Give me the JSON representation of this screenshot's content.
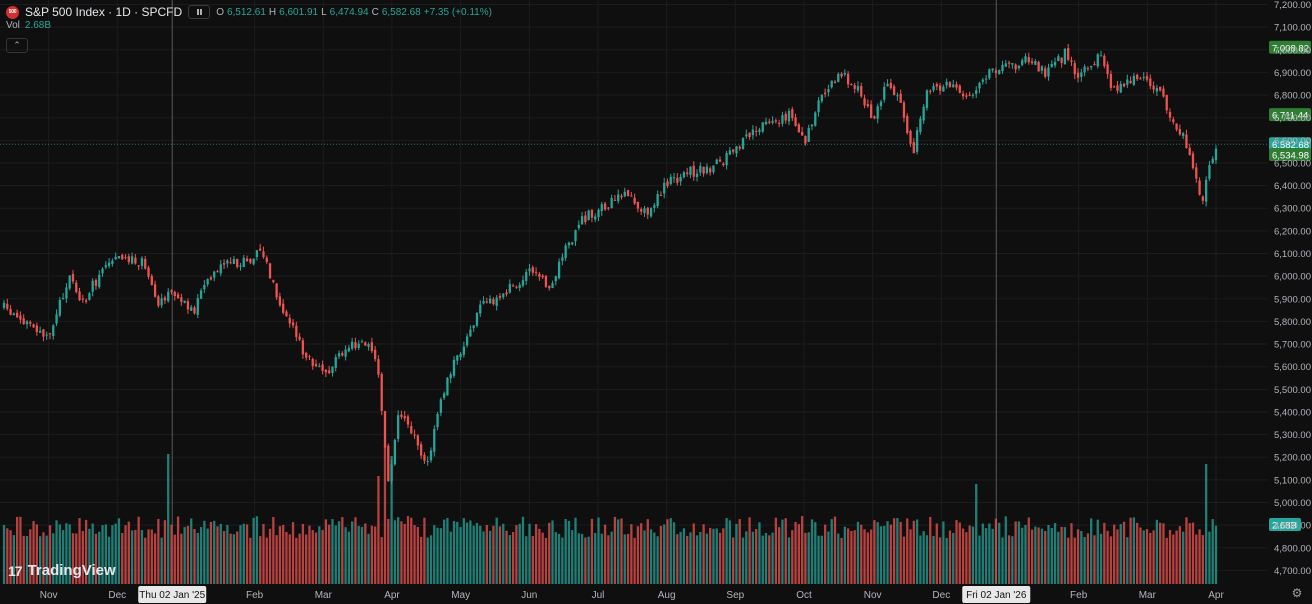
{
  "header": {
    "symbol_badge": "500",
    "title": "S&P 500 Index · 1D · SPCFD",
    "ohlc": {
      "o_label": "O",
      "o_value": "6,512.61",
      "h_label": "H",
      "h_value": "6,601.91",
      "l_label": "L",
      "l_value": "6,474.94",
      "c_label": "C",
      "c_value": "6,582.68",
      "change": "+7.35 (+0.11%)"
    },
    "vol_label": "Vol",
    "vol_value": "2.68B",
    "collapse_icon": "chevron-up-icon"
  },
  "branding": {
    "logo_mark": "17",
    "logo_text": "TradingView"
  },
  "colors": {
    "up": "#26a69a",
    "down": "#ef5350",
    "background": "#0f0f0f",
    "grid": "#1c1c1c",
    "price_tag": "#2e7d32"
  },
  "chart_data": {
    "type": "candlestick",
    "symbol": "SPCFD",
    "interval": "1D",
    "ylim": [
      4640,
      7220
    ],
    "y_ticks": [
      {
        "value": 7200,
        "label": "7,200.00"
      },
      {
        "value": 7100,
        "label": "7,100.00"
      },
      {
        "value": 7000,
        "label": "7,000.00"
      },
      {
        "value": 6900,
        "label": "6,900.00"
      },
      {
        "value": 6800,
        "label": "6,800.00"
      },
      {
        "value": 6700,
        "label": "6,700.00"
      },
      {
        "value": 6600,
        "label": "6,600.00"
      },
      {
        "value": 6500,
        "label": "6,500.00"
      },
      {
        "value": 6400,
        "label": "6,400.00"
      },
      {
        "value": 6300,
        "label": "6,300.00"
      },
      {
        "value": 6200,
        "label": "6,200.00"
      },
      {
        "value": 6100,
        "label": "6,100.00"
      },
      {
        "value": 6000,
        "label": "6,000.00"
      },
      {
        "value": 5900,
        "label": "5,900.00"
      },
      {
        "value": 5800,
        "label": "5,800.00"
      },
      {
        "value": 5700,
        "label": "5,700.00"
      },
      {
        "value": 5600,
        "label": "5,600.00"
      },
      {
        "value": 5500,
        "label": "5,500.00"
      },
      {
        "value": 5400,
        "label": "5,400.00"
      },
      {
        "value": 5300,
        "label": "5,300.00"
      },
      {
        "value": 5200,
        "label": "5,200.00"
      },
      {
        "value": 5100,
        "label": "5,100.00"
      },
      {
        "value": 5000,
        "label": "5,000.00"
      },
      {
        "value": 4900,
        "label": "4,900.00"
      },
      {
        "value": 4800,
        "label": "4,800.00"
      },
      {
        "value": 4700,
        "label": "4,700.00"
      }
    ],
    "x_ticks": [
      "Nov",
      "Dec",
      "Feb",
      "Mar",
      "Apr",
      "May",
      "Jun",
      "Jul",
      "Aug",
      "Sep",
      "Oct",
      "Nov",
      "Dec",
      "Feb",
      "Mar",
      "Apr"
    ],
    "x_tick_positions": [
      0.2,
      1.2,
      3.2,
      4.2,
      5.2,
      6.2,
      7.2,
      8.2,
      9.2,
      10.2,
      11.2,
      12.2,
      13.2,
      15.2,
      16.2,
      17.2
    ],
    "crosshair_labels": [
      {
        "label": "Thu 02 Jan '25",
        "month_index": 2.0
      },
      {
        "label": "Fri 02 Jan '26",
        "month_index": 14.0
      }
    ],
    "month_index_range": [
      -0.45,
      17.2
    ],
    "price_tags": [
      {
        "value": 7008.82,
        "label": "7,008.82"
      },
      {
        "value": 6711.44,
        "label": "6,711.44"
      },
      {
        "value": 6582.68,
        "label": "6,582.68"
      },
      {
        "value": 6534.98,
        "label": "6,534.98"
      }
    ],
    "current_price": 6582.68,
    "volume_tag": "2.68B",
    "price_anchors": [
      [
        -0.45,
        5860
      ],
      [
        0.2,
        5720
      ],
      [
        0.5,
        6000
      ],
      [
        0.7,
        5880
      ],
      [
        1.0,
        6040
      ],
      [
        1.3,
        6080
      ],
      [
        1.6,
        6060
      ],
      [
        1.8,
        5890
      ],
      [
        2.0,
        5940
      ],
      [
        2.3,
        5830
      ],
      [
        2.5,
        5990
      ],
      [
        2.8,
        6080
      ],
      [
        3.0,
        6050
      ],
      [
        3.3,
        6120
      ],
      [
        3.6,
        5860
      ],
      [
        3.9,
        5680
      ],
      [
        4.2,
        5560
      ],
      [
        4.5,
        5680
      ],
      [
        4.8,
        5720
      ],
      [
        5.0,
        5580
      ],
      [
        5.15,
        5080
      ],
      [
        5.3,
        5400
      ],
      [
        5.5,
        5300
      ],
      [
        5.7,
        5150
      ],
      [
        5.9,
        5450
      ],
      [
        6.2,
        5680
      ],
      [
        6.5,
        5860
      ],
      [
        6.8,
        5920
      ],
      [
        7.2,
        6010
      ],
      [
        7.5,
        5950
      ],
      [
        7.7,
        6110
      ],
      [
        8.0,
        6260
      ],
      [
        8.3,
        6300
      ],
      [
        8.6,
        6370
      ],
      [
        8.9,
        6280
      ],
      [
        9.2,
        6410
      ],
      [
        9.5,
        6460
      ],
      [
        9.8,
        6470
      ],
      [
        10.2,
        6550
      ],
      [
        10.5,
        6650
      ],
      [
        10.8,
        6690
      ],
      [
        11.0,
        6720
      ],
      [
        11.2,
        6590
      ],
      [
        11.4,
        6760
      ],
      [
        11.7,
        6890
      ],
      [
        12.0,
        6840
      ],
      [
        12.2,
        6690
      ],
      [
        12.4,
        6860
      ],
      [
        12.6,
        6760
      ],
      [
        12.8,
        6560
      ],
      [
        13.0,
        6820
      ],
      [
        13.3,
        6850
      ],
      [
        13.6,
        6800
      ],
      [
        13.9,
        6900
      ],
      [
        14.2,
        6920
      ],
      [
        14.5,
        6960
      ],
      [
        14.7,
        6890
      ],
      [
        15.0,
        6980
      ],
      [
        15.2,
        6880
      ],
      [
        15.5,
        6980
      ],
      [
        15.7,
        6820
      ],
      [
        16.0,
        6880
      ],
      [
        16.3,
        6840
      ],
      [
        16.5,
        6740
      ],
      [
        16.8,
        6560
      ],
      [
        17.0,
        6340
      ],
      [
        17.2,
        6580
      ]
    ],
    "volume_spikes": [
      {
        "month_index": 1.95,
        "value": 6.5
      },
      {
        "month_index": 5.0,
        "value": 5.4
      },
      {
        "month_index": 5.1,
        "value": 7.0
      },
      {
        "month_index": 5.2,
        "value": 6.4
      },
      {
        "month_index": 13.7,
        "value": 5.0
      },
      {
        "month_index": 17.05,
        "value": 6.0
      }
    ]
  }
}
